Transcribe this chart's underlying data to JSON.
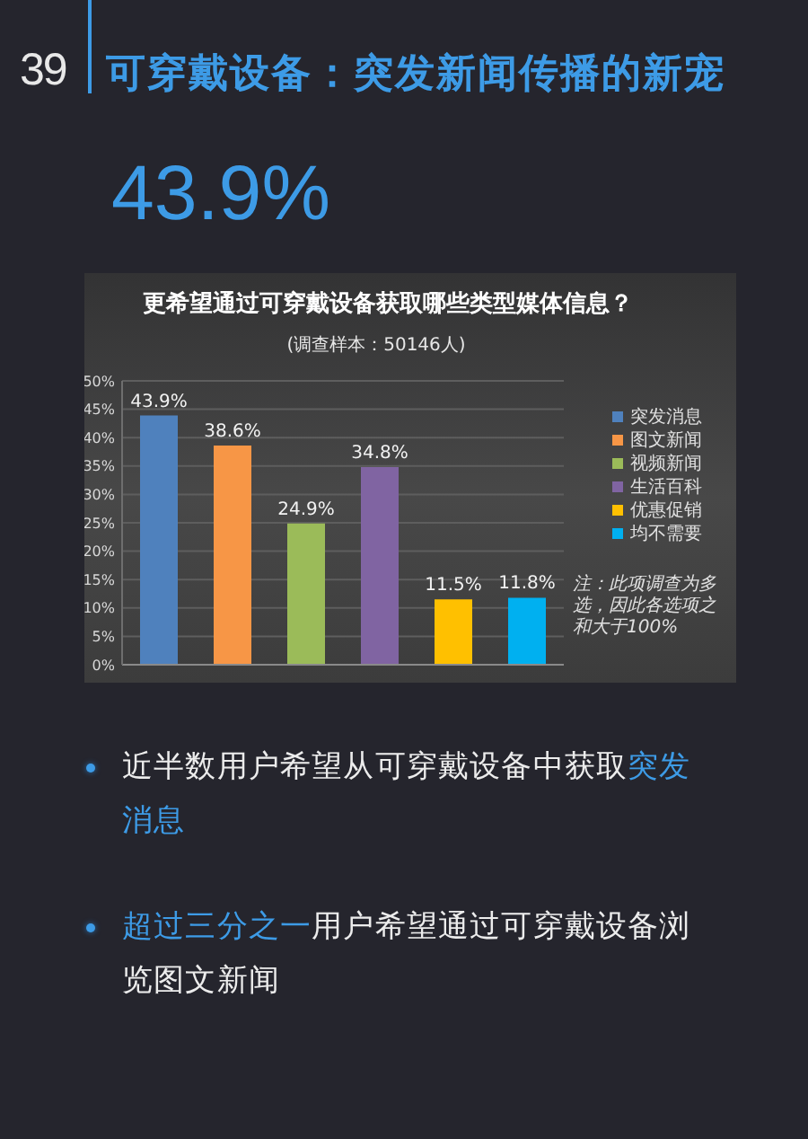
{
  "chart_data": {
    "type": "bar",
    "title": "更希望通过可穿戴设备获取哪些类型媒体信息？",
    "subtitle": "(调查样本：50146人)",
    "categories": [
      null
    ],
    "series": [
      {
        "name": "突发消息",
        "color": "#4f81bd",
        "values": [
          43.9
        ],
        "value_labels": [
          "43.9%"
        ]
      },
      {
        "name": "图文新闻",
        "color": "#f79646",
        "values": [
          38.6
        ],
        "value_labels": [
          "38.6%"
        ]
      },
      {
        "name": "视频新闻",
        "color": "#9bbb59",
        "values": [
          24.9
        ],
        "value_labels": [
          "24.9%"
        ]
      },
      {
        "name": "生活百科",
        "color": "#8064a2",
        "values": [
          34.8
        ],
        "value_labels": [
          "34.8%"
        ]
      },
      {
        "name": "优惠促销",
        "color": "#ffc000",
        "values": [
          11.5
        ],
        "value_labels": [
          "11.5%"
        ]
      },
      {
        "name": "均不需要",
        "color": "#00b0f0",
        "values": [
          11.8
        ],
        "value_labels": [
          "11.8%"
        ]
      }
    ],
    "ylim": [
      0,
      50
    ],
    "yticks": [
      {
        "value": 0,
        "label": "0%"
      },
      {
        "value": 5,
        "label": "5%"
      },
      {
        "value": 10,
        "label": "10%"
      },
      {
        "value": 15,
        "label": "15%"
      },
      {
        "value": 20,
        "label": "20%"
      },
      {
        "value": 25,
        "label": "25%"
      },
      {
        "value": 30,
        "label": "30%"
      },
      {
        "value": 35,
        "label": "35%"
      },
      {
        "value": 40,
        "label": "40%"
      },
      {
        "value": 45,
        "label": "45%"
      },
      {
        "value": 50,
        "label": "50%"
      }
    ],
    "grid": "y",
    "legend": "right",
    "tick_labels": "y",
    "annotations": [
      "39",
      "可穿戴设备：突发新闻传播的新宠",
      "43.9%",
      "注：此项调查为多选，因此各选项之和大于100%",
      "近半数用户希望从可穿戴设备中获取",
      "突发",
      "消息",
      "超过三分之一",
      "用户希望通过可穿戴设备浏",
      "览图文新闻"
    ]
  }
}
